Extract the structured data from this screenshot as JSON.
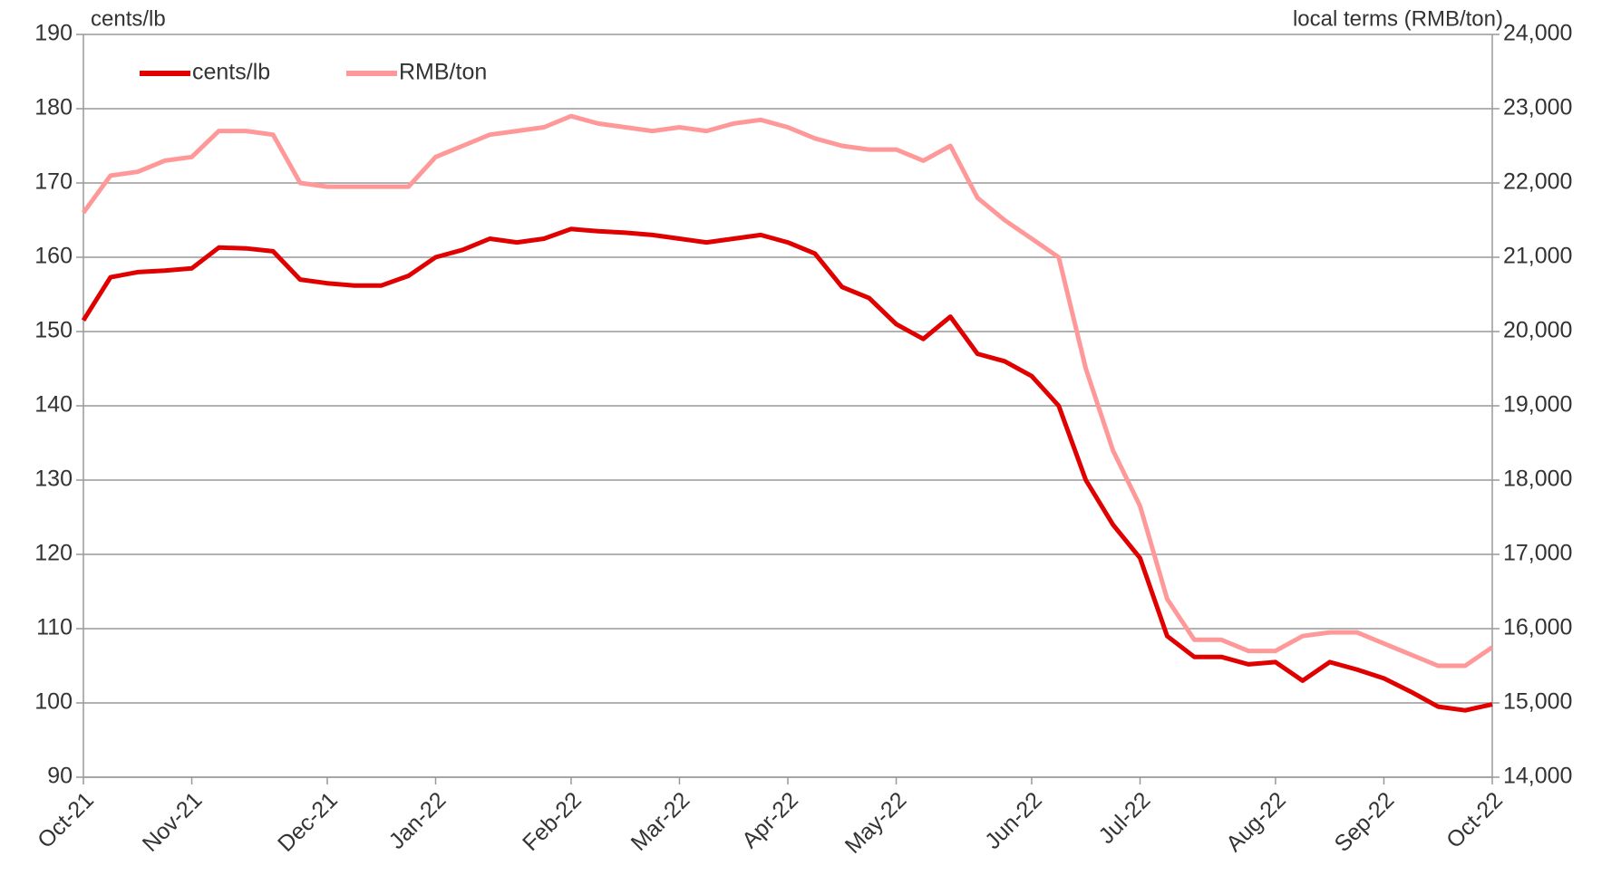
{
  "chart_data": {
    "type": "line",
    "ylabel": "cents/lb",
    "y2label": "local terms (RMB/ton)",
    "categories": [
      "Oct-21",
      null,
      null,
      null,
      "Nov-21",
      null,
      null,
      null,
      null,
      "Dec-21",
      null,
      null,
      null,
      "Jan-22",
      null,
      null,
      null,
      null,
      "Feb-22",
      null,
      null,
      null,
      "Mar-22",
      null,
      null,
      null,
      "Apr-22",
      null,
      null,
      null,
      "May-22",
      null,
      null,
      null,
      null,
      "Jun-22",
      null,
      null,
      null,
      "Jul-22",
      null,
      null,
      null,
      null,
      "Aug-22",
      null,
      null,
      null,
      "Sep-22",
      null,
      null,
      null,
      "Oct-22"
    ],
    "series": [
      {
        "name": "cents/lb",
        "color": "#e00000",
        "axis": "y",
        "values": [
          151.5,
          157.3,
          158,
          158.2,
          158.5,
          161.3,
          161.2,
          160.8,
          157,
          156.5,
          156.2,
          156.2,
          157.5,
          160,
          161,
          162.5,
          162,
          162.5,
          163.8,
          163.5,
          163.3,
          163,
          162.5,
          162,
          162.5,
          163,
          162,
          160.5,
          156,
          154.5,
          151,
          149,
          152,
          147,
          146,
          144,
          140,
          130,
          124,
          119.5,
          109,
          106.2,
          106.2,
          105.2,
          105.5,
          103,
          105.5,
          104.5,
          103.3,
          101.5,
          99.5,
          99,
          99.8
        ]
      },
      {
        "name": "RMB/ton",
        "color": "#ff9999",
        "axis": "y2",
        "values": [
          21600,
          22100,
          22150,
          22300,
          22350,
          22700,
          22700,
          22650,
          22000,
          21950,
          21950,
          21950,
          21950,
          22350,
          22500,
          22650,
          22700,
          22750,
          22900,
          22800,
          22750,
          22700,
          22750,
          22700,
          22800,
          22850,
          22750,
          22600,
          22500,
          22450,
          22450,
          22300,
          22500,
          21800,
          21500,
          21250,
          21000,
          19500,
          18400,
          17650,
          16400,
          15850,
          15850,
          15700,
          15700,
          15900,
          15950,
          15950,
          15800,
          15650,
          15500,
          15500,
          15750
        ]
      }
    ],
    "ylim": [
      90,
      190
    ],
    "yticks": [
      90,
      100,
      110,
      120,
      130,
      140,
      150,
      160,
      170,
      180,
      190
    ],
    "y2lim": [
      14000,
      24000
    ],
    "y2ticks": [
      {
        "value": 14000,
        "label": "14,000"
      },
      {
        "value": 15000,
        "label": "15,000"
      },
      {
        "value": 16000,
        "label": "16,000"
      },
      {
        "value": 17000,
        "label": "17,000"
      },
      {
        "value": 18000,
        "label": "18,000"
      },
      {
        "value": 19000,
        "label": "19,000"
      },
      {
        "value": 20000,
        "label": "20,000"
      },
      {
        "value": 21000,
        "label": "21,000"
      },
      {
        "value": 22000,
        "label": "22,000"
      },
      {
        "value": 23000,
        "label": "23,000"
      },
      {
        "value": 24000,
        "label": "24,000"
      }
    ],
    "grid": true,
    "legend": "upper left"
  }
}
